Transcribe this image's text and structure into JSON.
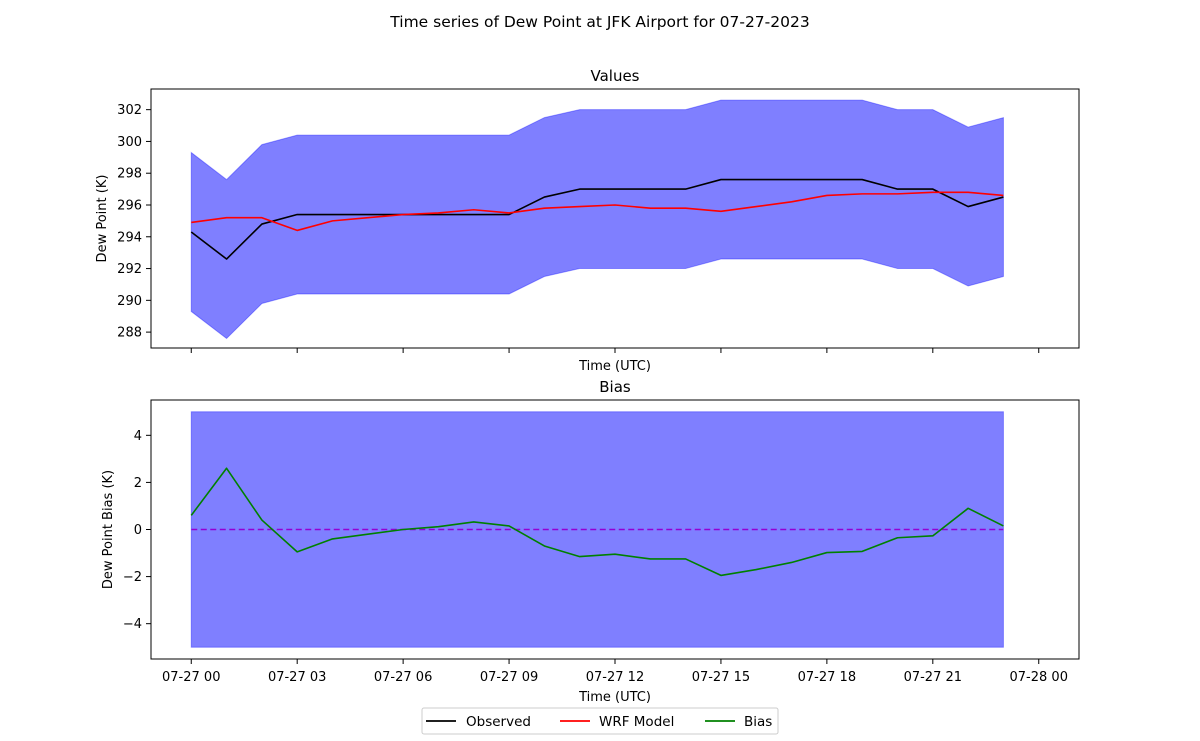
{
  "figure": {
    "suptitle": "Time series of Dew Point at JFK Airport for 07-27-2023"
  },
  "colors": {
    "band": "#0000ff",
    "observed": "#000000",
    "model": "#ff0000",
    "bias": "#008000",
    "zero_line": "#9400d3"
  },
  "legend": {
    "placement": "bottom-center",
    "items": [
      {
        "label": "Observed",
        "color": "#000000"
      },
      {
        "label": "WRF Model",
        "color": "#ff0000"
      },
      {
        "label": "Bias",
        "color": "#008000"
      }
    ]
  },
  "chart_data": [
    {
      "type": "line",
      "title": "Values",
      "xlabel": "Time (UTC)",
      "ylabel": "Dew Point (K)",
      "xlim": [
        "07-27 00",
        "07-28 00"
      ],
      "ylim": [
        287,
        303.3
      ],
      "yticks": [
        288,
        290,
        292,
        294,
        296,
        298,
        300,
        302
      ],
      "xticks": [
        "07-27 00",
        "07-27 03",
        "07-27 06",
        "07-27 09",
        "07-27 12",
        "07-27 15",
        "07-27 18",
        "07-27 21",
        "07-28 00"
      ],
      "show_xtick_labels": false,
      "x": [
        "07-27 00",
        "07-27 01",
        "07-27 02",
        "07-27 03",
        "07-27 04",
        "07-27 05",
        "07-27 06",
        "07-27 07",
        "07-27 08",
        "07-27 09",
        "07-27 10",
        "07-27 11",
        "07-27 12",
        "07-27 13",
        "07-27 14",
        "07-27 15",
        "07-27 16",
        "07-27 17",
        "07-27 18",
        "07-27 19",
        "07-27 20",
        "07-27 21",
        "07-27 22",
        "07-27 23"
      ],
      "series": [
        {
          "name": "Observed",
          "color": "#000000",
          "values": [
            294.3,
            292.6,
            294.8,
            295.4,
            295.4,
            295.4,
            295.4,
            295.4,
            295.4,
            295.4,
            296.5,
            297.0,
            297.0,
            297.0,
            297.0,
            297.6,
            297.6,
            297.6,
            297.6,
            297.6,
            297.0,
            297.0,
            295.9,
            296.5
          ]
        },
        {
          "name": "WRF Model",
          "color": "#ff0000",
          "values": [
            294.9,
            295.2,
            295.2,
            294.4,
            295.0,
            295.2,
            295.4,
            295.5,
            295.7,
            295.5,
            295.8,
            295.9,
            296.0,
            295.8,
            295.8,
            295.6,
            295.9,
            296.2,
            296.6,
            296.7,
            296.7,
            296.8,
            296.8,
            296.6
          ]
        }
      ],
      "band": {
        "color": "#0000ff",
        "alpha": 0.5,
        "upper": [
          299.3,
          297.6,
          299.8,
          300.4,
          300.4,
          300.4,
          300.4,
          300.4,
          300.4,
          300.4,
          301.5,
          302.0,
          302.0,
          302.0,
          302.0,
          302.6,
          302.6,
          302.6,
          302.6,
          302.6,
          302.0,
          302.0,
          300.9,
          301.5
        ],
        "lower": [
          289.3,
          287.6,
          289.8,
          290.4,
          290.4,
          290.4,
          290.4,
          290.4,
          290.4,
          290.4,
          291.5,
          292.0,
          292.0,
          292.0,
          292.0,
          292.6,
          292.6,
          292.6,
          292.6,
          292.6,
          292.0,
          292.0,
          290.9,
          291.5
        ]
      },
      "grid": false
    },
    {
      "type": "line",
      "title": "Bias",
      "xlabel": "Time (UTC)",
      "ylabel": "Dew Point Bias (K)",
      "xlim": [
        "07-27 00",
        "07-28 00"
      ],
      "ylim": [
        -5.5,
        5.5
      ],
      "yticks": [
        -4,
        -2,
        0,
        2,
        4
      ],
      "xticks": [
        "07-27 00",
        "07-27 03",
        "07-27 06",
        "07-27 09",
        "07-27 12",
        "07-27 15",
        "07-27 18",
        "07-27 21",
        "07-28 00"
      ],
      "show_xtick_labels": true,
      "x": [
        "07-27 00",
        "07-27 01",
        "07-27 02",
        "07-27 03",
        "07-27 04",
        "07-27 05",
        "07-27 06",
        "07-27 07",
        "07-27 08",
        "07-27 09",
        "07-27 10",
        "07-27 11",
        "07-27 12",
        "07-27 13",
        "07-27 14",
        "07-27 15",
        "07-27 16",
        "07-27 17",
        "07-27 18",
        "07-27 19",
        "07-27 20",
        "07-27 21",
        "07-27 22",
        "07-27 23"
      ],
      "series": [
        {
          "name": "Bias",
          "color": "#008000",
          "values": [
            0.6,
            2.6,
            0.4,
            -0.95,
            -0.4,
            -0.2,
            0.0,
            0.12,
            0.32,
            0.15,
            -0.7,
            -1.15,
            -1.05,
            -1.25,
            -1.25,
            -1.95,
            -1.7,
            -1.4,
            -0.98,
            -0.93,
            -0.35,
            -0.27,
            0.9,
            0.15
          ]
        }
      ],
      "band": {
        "color": "#0000ff",
        "alpha": 0.5,
        "upper": [
          5,
          5,
          5,
          5,
          5,
          5,
          5,
          5,
          5,
          5,
          5,
          5,
          5,
          5,
          5,
          5,
          5,
          5,
          5,
          5,
          5,
          5,
          5,
          5
        ],
        "lower": [
          -5,
          -5,
          -5,
          -5,
          -5,
          -5,
          -5,
          -5,
          -5,
          -5,
          -5,
          -5,
          -5,
          -5,
          -5,
          -5,
          -5,
          -5,
          -5,
          -5,
          -5,
          -5,
          -5,
          -5
        ]
      },
      "reference_line": {
        "y": 0,
        "style": "dashed",
        "color": "#9400d3"
      },
      "grid": false
    }
  ]
}
